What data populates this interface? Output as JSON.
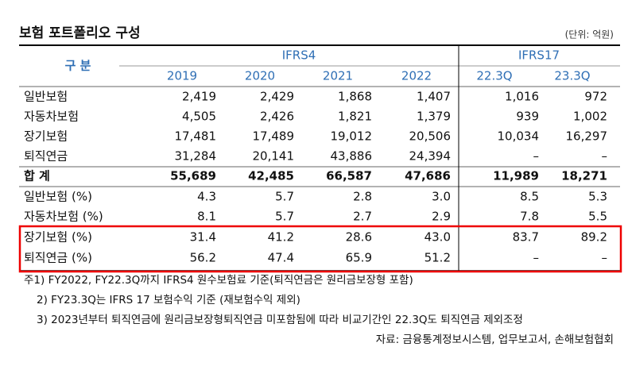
{
  "header": {
    "title": "보험 포트폴리오 구성",
    "unit": "(단위: 억원)"
  },
  "table": {
    "row_header": "구 분",
    "groups": [
      "IFRS4",
      "IFRS17"
    ],
    "columns": [
      "2019",
      "2020",
      "2021",
      "2022",
      "22.3Q",
      "23.3Q"
    ],
    "rows": [
      [
        "일반보험",
        "2,419",
        "2,429",
        "1,868",
        "1,407",
        "1,016",
        "972"
      ],
      [
        "자동차보험",
        "4,505",
        "2,426",
        "1,821",
        "1,379",
        "939",
        "1,002"
      ],
      [
        "장기보험",
        "17,481",
        "17,489",
        "19,012",
        "20,506",
        "10,034",
        "16,297"
      ],
      [
        "퇴직연금",
        "31,284",
        "20,141",
        "43,886",
        "24,394",
        "–",
        "–"
      ],
      [
        "합 계",
        "55,689",
        "42,485",
        "66,587",
        "47,686",
        "11,989",
        "18,271"
      ],
      [
        "일반보험 (%)",
        "4.3",
        "5.7",
        "2.8",
        "3.0",
        "8.5",
        "5.3"
      ],
      [
        "자동차보험 (%)",
        "8.1",
        "5.7",
        "2.7",
        "2.9",
        "7.8",
        "5.5"
      ],
      [
        "장기보험 (%)",
        "31.4",
        "41.2",
        "28.6",
        "43.0",
        "83.7",
        "89.2"
      ],
      [
        "퇴직연금 (%)",
        "56.2",
        "47.4",
        "65.9",
        "51.2",
        "–",
        "–"
      ]
    ]
  },
  "notes": [
    "주1) FY2022, FY22.3Q까지 IFRS4 원수보험료 기준(퇴직연금은 원리금보장형 포함)",
    "2) FY23.3Q는 IFRS 17 보험수익 기준 (재보험수익 제외)",
    "3) 2023년부터 퇴직연금에 원리금보장형퇴직연금 미포함됨에 따라 비교기간인 22.3Q도 퇴직연금 제외조정"
  ],
  "source": "자료: 금융통계정보시스템, 업무보고서, 손해보험협회"
}
